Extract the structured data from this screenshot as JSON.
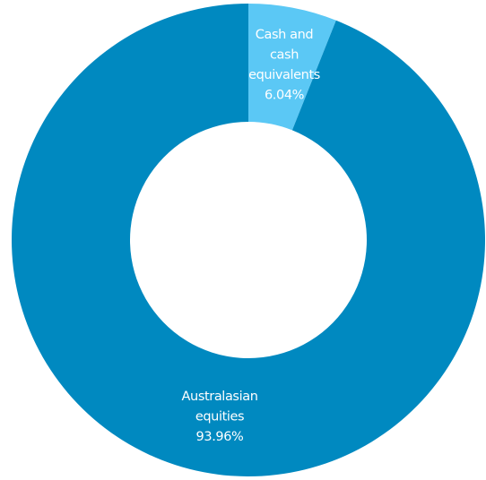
{
  "chart_data": {
    "type": "pie",
    "donut": true,
    "title": "",
    "slices": [
      {
        "label_lines": [
          "Cash and",
          "cash",
          "equivalents"
        ],
        "value": 6.04,
        "value_label": "6.04%",
        "color": "#5bc8f5"
      },
      {
        "label_lines": [
          "Australasian",
          "equities"
        ],
        "value": 93.96,
        "value_label": "93.96%",
        "color": "#0089c0"
      }
    ],
    "start_angle": "top, clockwise",
    "legend": "none"
  }
}
